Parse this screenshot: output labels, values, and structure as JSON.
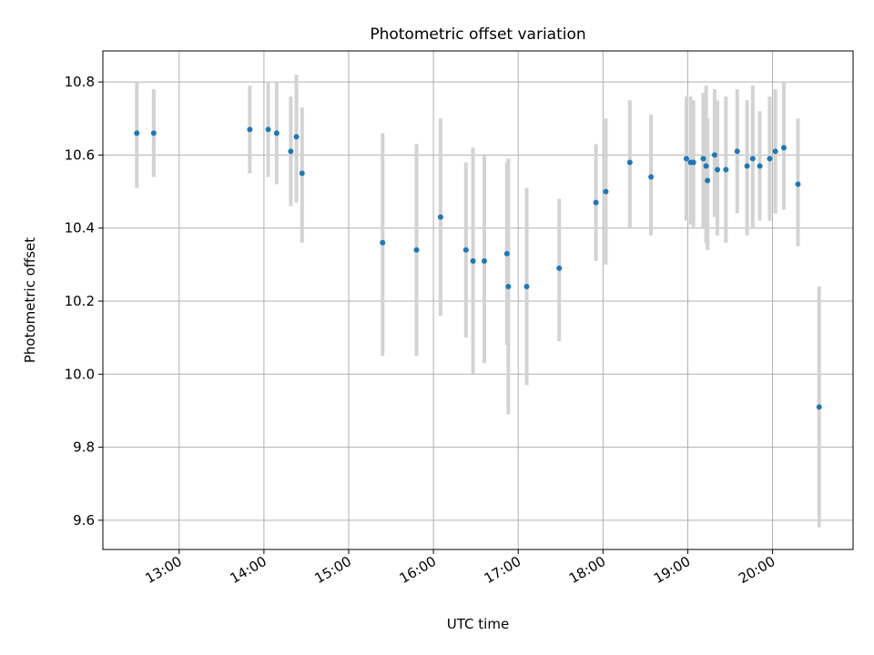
{
  "chart_data": {
    "type": "scatter",
    "title": "Photometric offset variation",
    "xlabel": "UTC time",
    "ylabel": "Photometric offset",
    "xlim": [
      "12:06",
      "20:57"
    ],
    "ylim": [
      9.52,
      10.885
    ],
    "x_ticks": [
      "13:00",
      "14:00",
      "15:00",
      "16:00",
      "17:00",
      "18:00",
      "19:00",
      "20:00"
    ],
    "y_ticks": [
      9.6,
      9.8,
      10.0,
      10.2,
      10.4,
      10.6,
      10.8
    ],
    "y_tick_labels": [
      "9.6",
      "9.8",
      "10.0",
      "10.2",
      "10.4",
      "10.6",
      "10.8"
    ],
    "grid": true,
    "marker_color": "#1f77b4",
    "errorbar_color": "#d3d3d3",
    "points": [
      {
        "x": "12:30",
        "y": 10.66,
        "ylow": 10.51,
        "yhigh": 10.8
      },
      {
        "x": "12:42",
        "y": 10.66,
        "ylow": 10.54,
        "yhigh": 10.78
      },
      {
        "x": "13:50",
        "y": 10.67,
        "ylow": 10.55,
        "yhigh": 10.79
      },
      {
        "x": "14:03",
        "y": 10.67,
        "ylow": 10.54,
        "yhigh": 10.8
      },
      {
        "x": "14:09",
        "y": 10.66,
        "ylow": 10.52,
        "yhigh": 10.8
      },
      {
        "x": "14:19",
        "y": 10.61,
        "ylow": 10.46,
        "yhigh": 10.76
      },
      {
        "x": "14:23",
        "y": 10.65,
        "ylow": 10.47,
        "yhigh": 10.82
      },
      {
        "x": "14:27",
        "y": 10.55,
        "ylow": 10.36,
        "yhigh": 10.73
      },
      {
        "x": "15:24",
        "y": 10.36,
        "ylow": 10.05,
        "yhigh": 10.66
      },
      {
        "x": "15:48",
        "y": 10.34,
        "ylow": 10.05,
        "yhigh": 10.63
      },
      {
        "x": "16:05",
        "y": 10.43,
        "ylow": 10.16,
        "yhigh": 10.7
      },
      {
        "x": "16:23",
        "y": 10.34,
        "ylow": 10.1,
        "yhigh": 10.58
      },
      {
        "x": "16:28",
        "y": 10.31,
        "ylow": 10.0,
        "yhigh": 10.62
      },
      {
        "x": "16:36",
        "y": 10.31,
        "ylow": 10.03,
        "yhigh": 10.6
      },
      {
        "x": "16:52",
        "y": 10.33,
        "ylow": 10.08,
        "yhigh": 10.58
      },
      {
        "x": "16:53",
        "y": 10.24,
        "ylow": 9.89,
        "yhigh": 10.59
      },
      {
        "x": "17:06",
        "y": 10.24,
        "ylow": 9.97,
        "yhigh": 10.51
      },
      {
        "x": "17:29",
        "y": 10.29,
        "ylow": 10.09,
        "yhigh": 10.48
      },
      {
        "x": "17:55",
        "y": 10.47,
        "ylow": 10.31,
        "yhigh": 10.63
      },
      {
        "x": "18:02",
        "y": 10.5,
        "ylow": 10.3,
        "yhigh": 10.7
      },
      {
        "x": "18:19",
        "y": 10.58,
        "ylow": 10.4,
        "yhigh": 10.75
      },
      {
        "x": "18:34",
        "y": 10.54,
        "ylow": 10.38,
        "yhigh": 10.71
      },
      {
        "x": "18:59",
        "y": 10.59,
        "ylow": 10.42,
        "yhigh": 10.76
      },
      {
        "x": "19:02",
        "y": 10.58,
        "ylow": 10.41,
        "yhigh": 10.76
      },
      {
        "x": "19:04",
        "y": 10.58,
        "ylow": 10.4,
        "yhigh": 10.75
      },
      {
        "x": "19:11",
        "y": 10.59,
        "ylow": 10.4,
        "yhigh": 10.77
      },
      {
        "x": "19:13",
        "y": 10.57,
        "ylow": 10.36,
        "yhigh": 10.79
      },
      {
        "x": "19:14",
        "y": 10.53,
        "ylow": 10.34,
        "yhigh": 10.7
      },
      {
        "x": "19:19",
        "y": 10.6,
        "ylow": 10.43,
        "yhigh": 10.78
      },
      {
        "x": "19:21",
        "y": 10.56,
        "ylow": 10.38,
        "yhigh": 10.75
      },
      {
        "x": "19:27",
        "y": 10.56,
        "ylow": 10.36,
        "yhigh": 10.76
      },
      {
        "x": "19:35",
        "y": 10.61,
        "ylow": 10.44,
        "yhigh": 10.78
      },
      {
        "x": "19:42",
        "y": 10.57,
        "ylow": 10.38,
        "yhigh": 10.75
      },
      {
        "x": "19:46",
        "y": 10.59,
        "ylow": 10.4,
        "yhigh": 10.79
      },
      {
        "x": "19:51",
        "y": 10.57,
        "ylow": 10.42,
        "yhigh": 10.72
      },
      {
        "x": "19:58",
        "y": 10.59,
        "ylow": 10.42,
        "yhigh": 10.76
      },
      {
        "x": "20:02",
        "y": 10.61,
        "ylow": 10.44,
        "yhigh": 10.78
      },
      {
        "x": "20:08",
        "y": 10.62,
        "ylow": 10.45,
        "yhigh": 10.8
      },
      {
        "x": "20:18",
        "y": 10.52,
        "ylow": 10.35,
        "yhigh": 10.7
      },
      {
        "x": "20:33",
        "y": 9.91,
        "ylow": 9.58,
        "yhigh": 10.24
      }
    ]
  }
}
